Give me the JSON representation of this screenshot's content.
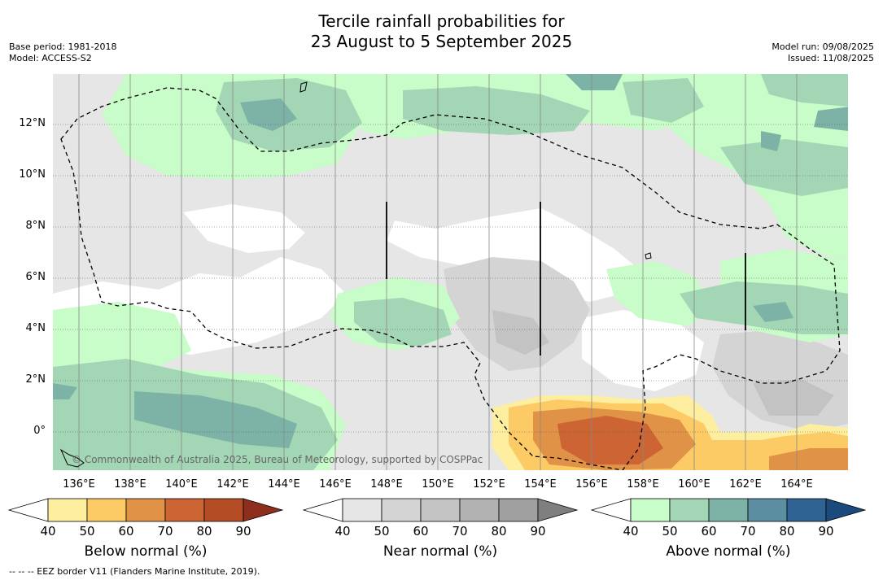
{
  "title_line1": "Tercile rainfall probabilities for",
  "title_line2": "23 August to 5 September 2025",
  "meta_left": [
    "Base period: 1981-2018",
    "Model: ACCESS-S2"
  ],
  "meta_right": [
    "Model run: 09/08/2025",
    "Issued: 11/08/2025"
  ],
  "y_ticks": [
    "12°N",
    "10°N",
    "8°N",
    "6°N",
    "4°N",
    "2°N",
    "0°"
  ],
  "x_ticks": [
    "136°E",
    "138°E",
    "140°E",
    "142°E",
    "144°E",
    "146°E",
    "148°E",
    "150°E",
    "152°E",
    "154°E",
    "156°E",
    "158°E",
    "160°E",
    "162°E",
    "164°E"
  ],
  "copyright": "© Commonwealth of Australia 2025, Bureau of Meteorology, supported by COSPPac",
  "colorbars": [
    {
      "label": "Below normal (%)",
      "ticks": [
        "40",
        "50",
        "60",
        "70",
        "80",
        "90"
      ],
      "colors": [
        "#ffffff",
        "#fdeea0",
        "#fccb66",
        "#e09246",
        "#cc6434",
        "#b44d26",
        "#8f2e1d"
      ]
    },
    {
      "label": "Near normal (%)",
      "ticks": [
        "40",
        "50",
        "60",
        "70",
        "80",
        "90"
      ],
      "colors": [
        "#ffffff",
        "#e6e6e6",
        "#d4d4d4",
        "#c3c3c3",
        "#b2b2b2",
        "#a0a0a0",
        "#7f7f7f"
      ]
    },
    {
      "label": "Above normal (%)",
      "ticks": [
        "40",
        "50",
        "60",
        "70",
        "80",
        "90"
      ],
      "colors": [
        "#ffffff",
        "#c8fcc8",
        "#a3d6b5",
        "#7db3a6",
        "#5a8ea0",
        "#2f6393",
        "#1a4b7c"
      ]
    }
  ],
  "footnote": "--  --  -- EEZ border V11 (Flanders Marine Institute, 2019)."
}
